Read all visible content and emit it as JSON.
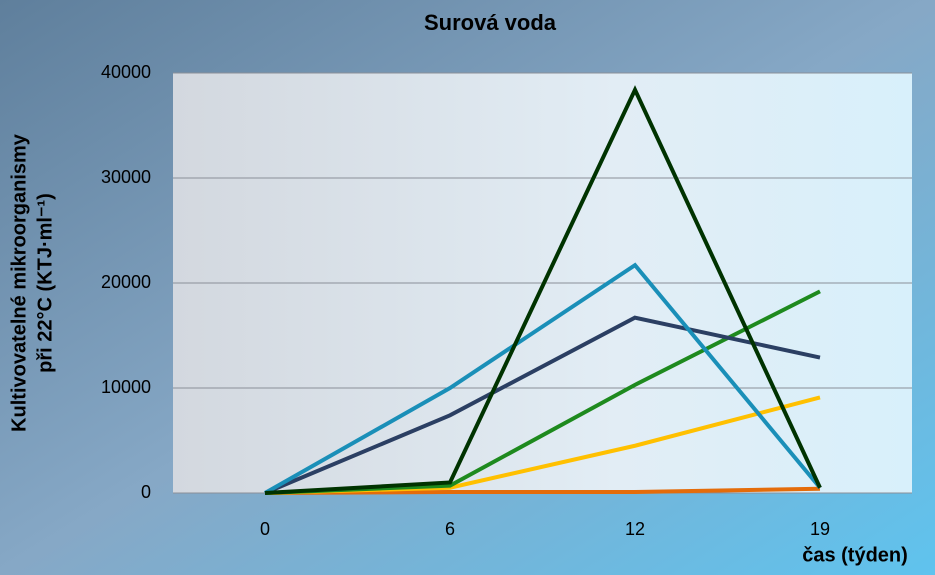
{
  "chart_data": {
    "type": "line",
    "title": "Surová voda",
    "y_label": [
      "Kultivovatelné mikroorganismy",
      "při 22°C (KTJ·ml⁻¹)"
    ],
    "x_label": "čas (týden)",
    "categories": [
      "0",
      "6",
      "12",
      "19"
    ],
    "series": [
      {
        "color": "#e46c0a",
        "values": [
          0,
          100,
          100,
          400
        ]
      },
      {
        "color": "#ffc000",
        "values": [
          0,
          500,
          4500,
          9100
        ]
      },
      {
        "color": "#1e8a1e",
        "values": [
          0,
          700,
          10300,
          19200
        ]
      },
      {
        "color": "#2b3f63",
        "values": [
          0,
          7400,
          16700,
          12900
        ]
      },
      {
        "color": "#1a8fb8",
        "values": [
          0,
          10000,
          21700,
          500
        ]
      },
      {
        "color": "#003300",
        "values": [
          0,
          1000,
          38400,
          500
        ]
      }
    ],
    "ylim": [
      0,
      40000
    ],
    "yticks": [
      0,
      10000,
      20000,
      30000,
      40000
    ],
    "grid": true
  }
}
